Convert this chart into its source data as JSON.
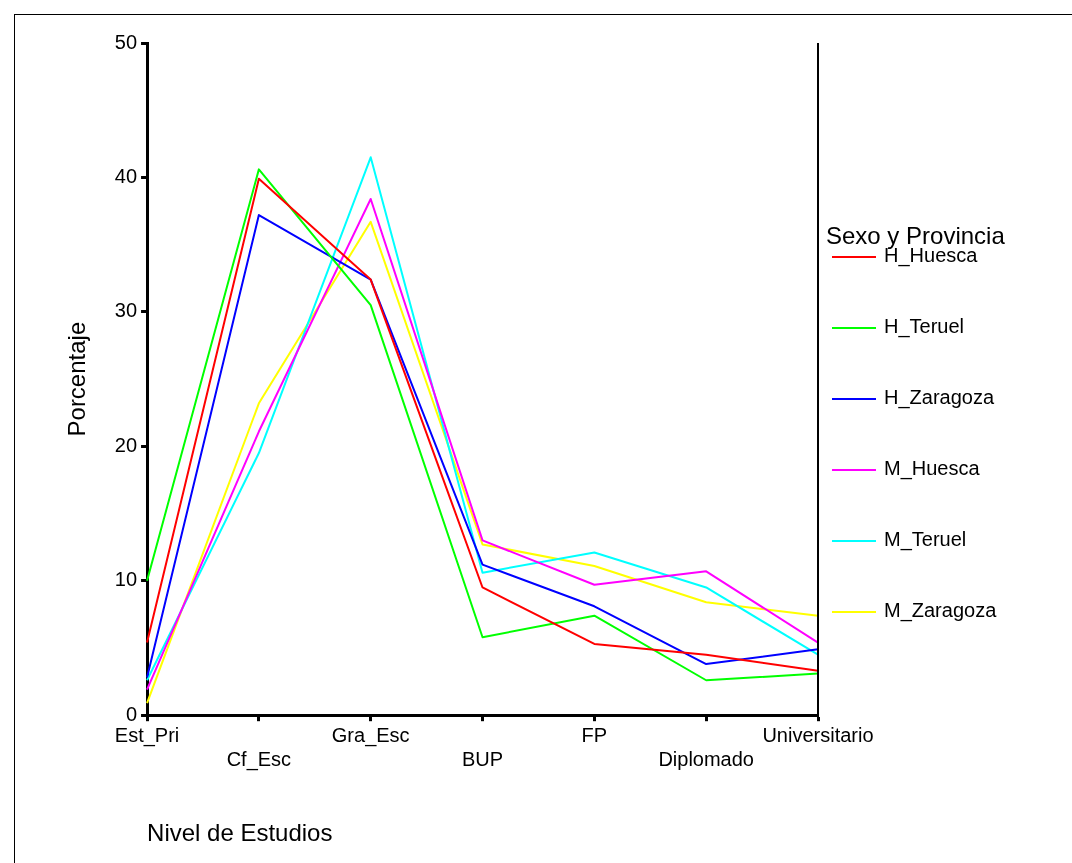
{
  "chart_data": {
    "type": "line",
    "xlabel": "Nivel de Estudios",
    "ylabel": "Porcentaje",
    "legend_title": "Sexo y Provincia",
    "legend": "right",
    "grid": false,
    "marker": "none",
    "line_style": "solid",
    "categories": [
      "Est_Pri",
      "Cf_Esc",
      "Gra_Esc",
      "BUP",
      "FP",
      "Diplomado",
      "Universitario"
    ],
    "ylim": [
      0,
      50
    ],
    "yticks": [
      0,
      10,
      20,
      30,
      40,
      50
    ],
    "series": [
      {
        "name": "H_Huesca",
        "color": "#ff0000",
        "values": [
          5.4,
          39.9,
          32.4,
          9.5,
          5.3,
          4.5,
          3.3
        ]
      },
      {
        "name": "H_Teruel",
        "color": "#00ff00",
        "values": [
          10.0,
          40.6,
          30.5,
          5.8,
          7.4,
          2.6,
          3.1
        ]
      },
      {
        "name": "H_Zaragoza",
        "color": "#0000ff",
        "values": [
          2.8,
          37.2,
          32.4,
          11.2,
          8.1,
          3.8,
          4.9
        ]
      },
      {
        "name": "M_Huesca",
        "color": "#ff00ff",
        "values": [
          1.9,
          21.1,
          38.4,
          13.0,
          9.7,
          10.7,
          5.4
        ]
      },
      {
        "name": "M_Teruel",
        "color": "#00ffff",
        "values": [
          2.6,
          19.5,
          41.5,
          10.6,
          12.1,
          9.5,
          4.5
        ]
      },
      {
        "name": "M_Zaragoza",
        "color": "#ffff00",
        "values": [
          0.9,
          23.2,
          36.7,
          12.7,
          11.1,
          8.4,
          7.4
        ]
      }
    ]
  }
}
